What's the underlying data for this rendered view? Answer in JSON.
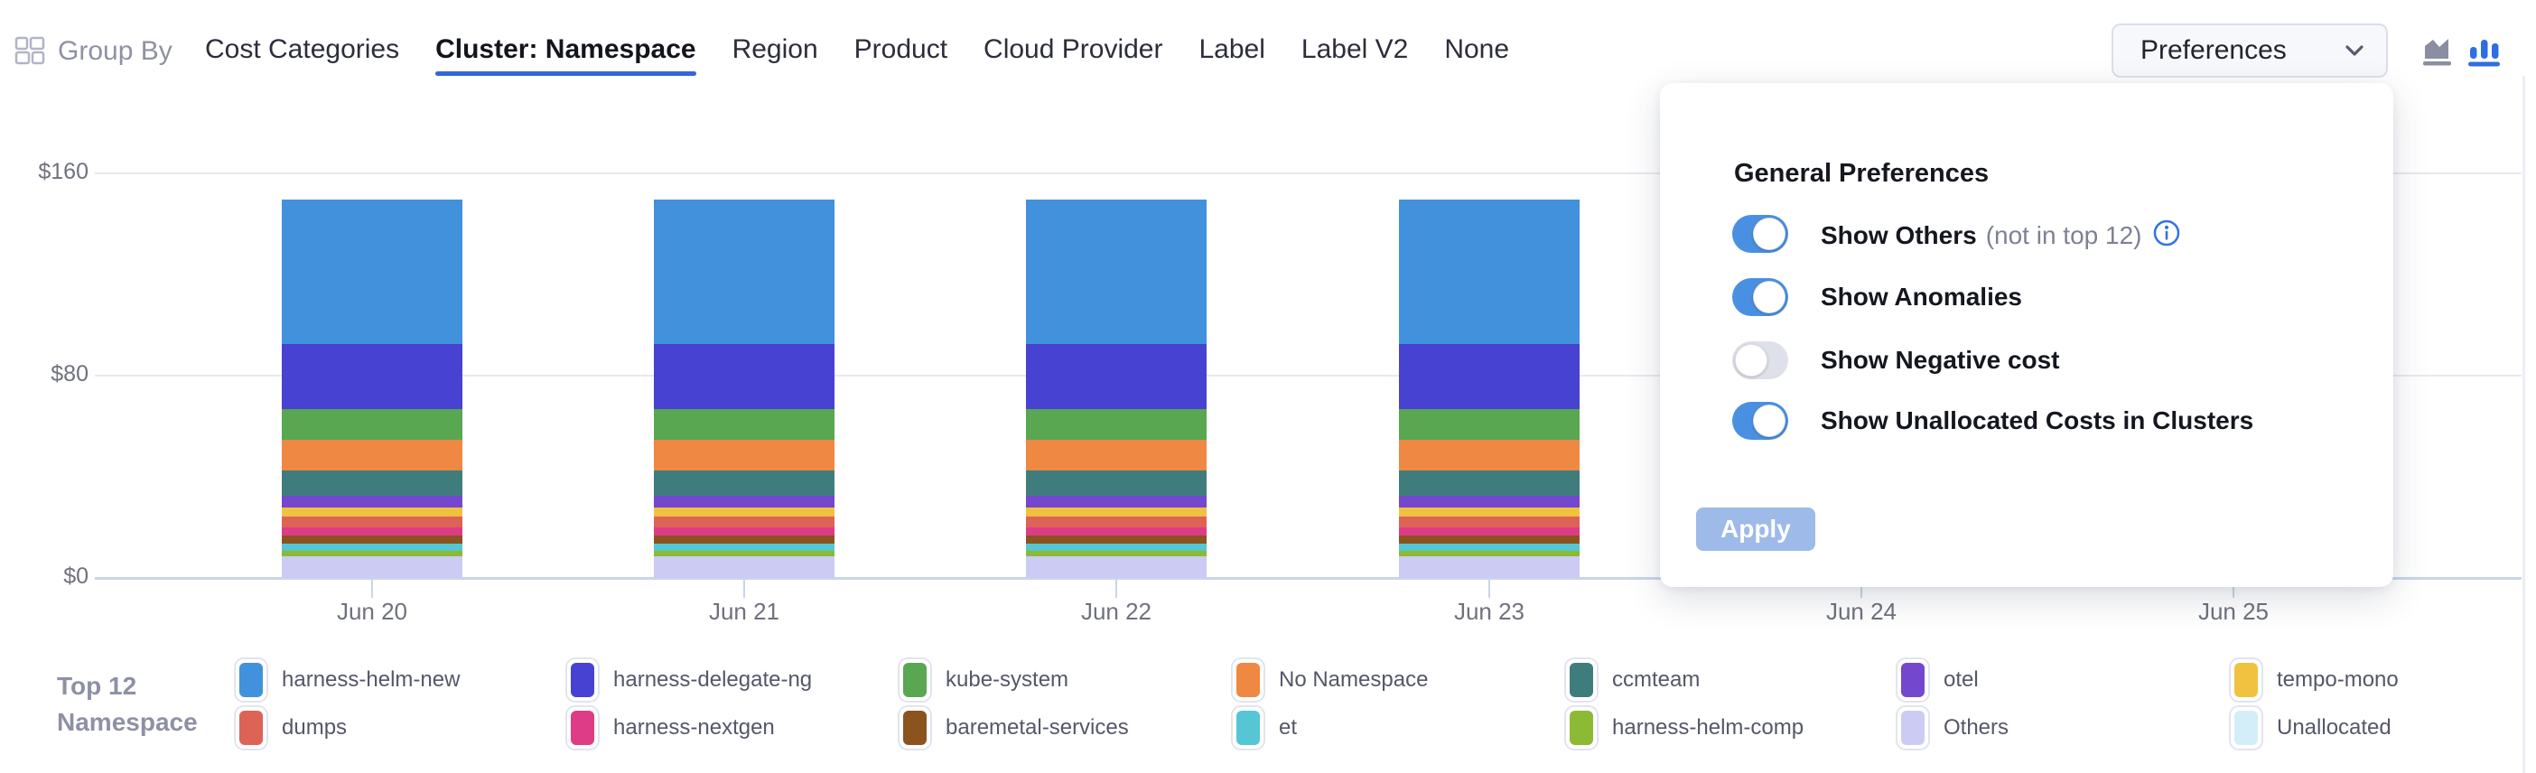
{
  "header": {
    "group_by_label": "Group By",
    "tabs": [
      {
        "label": "Cost Categories",
        "active": false
      },
      {
        "label": "Cluster: Namespace",
        "active": true
      },
      {
        "label": "Region",
        "active": false
      },
      {
        "label": "Product",
        "active": false
      },
      {
        "label": "Cloud Provider",
        "active": false
      },
      {
        "label": "Label",
        "active": false
      },
      {
        "label": "Label V2",
        "active": false
      },
      {
        "label": "None",
        "active": false
      }
    ],
    "preferences_button_label": "Preferences",
    "chart_type_icons": [
      {
        "name": "area-chart",
        "active": false,
        "color": "#8b8da3"
      },
      {
        "name": "bar-chart",
        "active": true,
        "color": "#2e6fe0"
      }
    ]
  },
  "preferences_panel": {
    "title": "General Preferences",
    "toggles": [
      {
        "label": "Show Others",
        "suffix": "(not in top 12)",
        "info": true,
        "on": true
      },
      {
        "label": "Show Anomalies",
        "suffix": "",
        "info": false,
        "on": true
      },
      {
        "label": "Show Negative cost",
        "suffix": "",
        "info": false,
        "on": false
      },
      {
        "label": "Show Unallocated Costs in Clusters",
        "suffix": "",
        "info": false,
        "on": true
      }
    ],
    "apply_label": "Apply",
    "apply_enabled": false
  },
  "chart_data": {
    "type": "bar",
    "stacked": true,
    "grid": true,
    "legend_position": "bottom",
    "unit": "$",
    "ylim": [
      0,
      160
    ],
    "y_ticks": [
      "$0",
      "$80",
      "$160"
    ],
    "categories": [
      "Jun 20",
      "Jun 21",
      "Jun 22",
      "Jun 23",
      "Jun 24",
      "Jun 25"
    ],
    "series": [
      {
        "name": "harness-helm-new",
        "color": "#4291dd",
        "values": [
          57.1,
          57.1,
          57.1,
          57.1,
          null,
          null
        ]
      },
      {
        "name": "harness-delegate-ng",
        "color": "#4742d2",
        "values": [
          25.7,
          25.7,
          25.7,
          25.7,
          null,
          null
        ]
      },
      {
        "name": "kube-system",
        "color": "#59a750",
        "values": [
          12.1,
          12.1,
          12.1,
          12.1,
          null,
          null
        ]
      },
      {
        "name": "No Namespace",
        "color": "#ef8842",
        "values": [
          12.1,
          12.1,
          12.1,
          12.1,
          null,
          null
        ]
      },
      {
        "name": "ccmteam",
        "color": "#3f7d7d",
        "values": [
          10.0,
          10.0,
          10.0,
          10.0,
          null,
          null
        ]
      },
      {
        "name": "otel",
        "color": "#7447cf",
        "values": [
          4.6,
          4.6,
          4.6,
          4.6,
          null,
          null
        ]
      },
      {
        "name": "tempo-mono",
        "color": "#f0c23f",
        "values": [
          3.6,
          3.6,
          3.6,
          3.6,
          null,
          null
        ]
      },
      {
        "name": "dumps",
        "color": "#dc6356",
        "values": [
          4.3,
          4.3,
          4.3,
          4.3,
          null,
          null
        ]
      },
      {
        "name": "harness-nextgen",
        "color": "#de3c86",
        "values": [
          3.2,
          3.2,
          3.2,
          3.2,
          null,
          null
        ]
      },
      {
        "name": "baremetal-services",
        "color": "#8b531d",
        "values": [
          3.3,
          3.3,
          3.3,
          3.3,
          null,
          null
        ]
      },
      {
        "name": "et",
        "color": "#55c6d3",
        "values": [
          2.9,
          2.9,
          2.9,
          2.9,
          null,
          null
        ]
      },
      {
        "name": "harness-helm-comp",
        "color": "#8cba34",
        "values": [
          2.1,
          2.1,
          2.1,
          2.1,
          null,
          null
        ]
      },
      {
        "name": "Others",
        "color": "#cbcbf4",
        "values": [
          8.6,
          8.6,
          8.6,
          8.6,
          null,
          null
        ]
      },
      {
        "name": "Unallocated",
        "color": "#d3eef9",
        "values": [
          0,
          0,
          0,
          0,
          null,
          null
        ]
      }
    ]
  },
  "legend": {
    "title_lines": [
      "Top 12",
      "Namespace"
    ],
    "items": [
      {
        "label": "harness-helm-new",
        "color": "#4291dd"
      },
      {
        "label": "harness-delegate-ng",
        "color": "#4742d2"
      },
      {
        "label": "kube-system",
        "color": "#59a750"
      },
      {
        "label": "No Namespace",
        "color": "#ef8842"
      },
      {
        "label": "ccmteam",
        "color": "#3f7d7d"
      },
      {
        "label": "otel",
        "color": "#7447cf"
      },
      {
        "label": "tempo-mono",
        "color": "#f0c23f"
      },
      {
        "label": "dumps",
        "color": "#dc6356"
      },
      {
        "label": "harness-nextgen",
        "color": "#de3c86"
      },
      {
        "label": "baremetal-services",
        "color": "#8b531d"
      },
      {
        "label": "et",
        "color": "#55c6d3"
      },
      {
        "label": "harness-helm-comp",
        "color": "#8cba34"
      },
      {
        "label": "Others",
        "color": "#cbcbf4"
      },
      {
        "label": "Unallocated",
        "color": "#d3eef9"
      }
    ]
  }
}
